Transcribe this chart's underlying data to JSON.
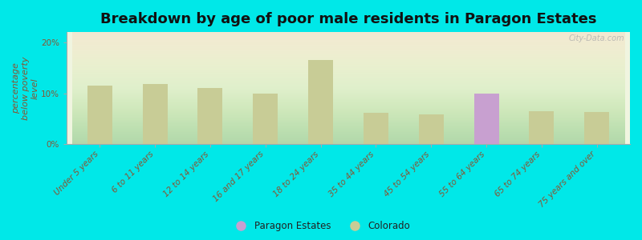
{
  "title": "Breakdown by age of poor male residents in Paragon Estates",
  "ylabel": "percentage\nbelow poverty\nlevel",
  "categories": [
    "Under 5 years",
    "6 to 11 years",
    "12 to 14 years",
    "16 and 17 years",
    "18 to 24 years",
    "35 to 44 years",
    "45 to 54 years",
    "55 to 64 years",
    "65 to 74 years",
    "75 years and over"
  ],
  "paragon_values": [
    null,
    null,
    null,
    null,
    null,
    null,
    null,
    10.0,
    null,
    null
  ],
  "colorado_values": [
    11.5,
    11.8,
    11.0,
    10.0,
    16.5,
    6.2,
    5.8,
    9.2,
    6.5,
    6.3
  ],
  "paragon_color": "#c8a0d0",
  "colorado_color": "#c8cc96",
  "background_color": "#00e8e8",
  "ylim": [
    0,
    22
  ],
  "ytick_labels": [
    "0%",
    "10%",
    "20%"
  ],
  "ytick_values": [
    0,
    10,
    20
  ],
  "title_fontsize": 13,
  "axis_label_fontsize": 8,
  "tick_label_fontsize": 7.5,
  "watermark": "City-Data.com",
  "label_color": "#885533",
  "bar_width": 0.45
}
